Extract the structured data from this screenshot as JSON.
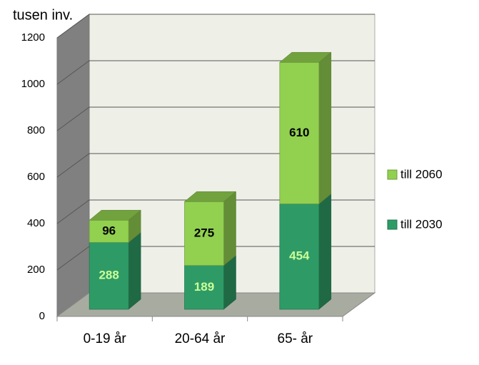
{
  "chart_data": {
    "type": "bar3d-stacked",
    "y_label": "tusen inv.",
    "categories": [
      "0-19 år",
      "20-64 år",
      "65- år"
    ],
    "series": [
      {
        "name": "till 2030",
        "color": "#2e9b66",
        "label_color": "#ccff99",
        "values": [
          288,
          189,
          454
        ]
      },
      {
        "name": "till 2060",
        "color": "#92d050",
        "label_color": "#000000",
        "values": [
          96,
          275,
          610
        ]
      }
    ],
    "ylim": [
      0,
      1200
    ],
    "yticks": [
      0,
      200,
      400,
      600,
      800,
      1000,
      1200
    ],
    "grid": true,
    "legend": "right"
  }
}
